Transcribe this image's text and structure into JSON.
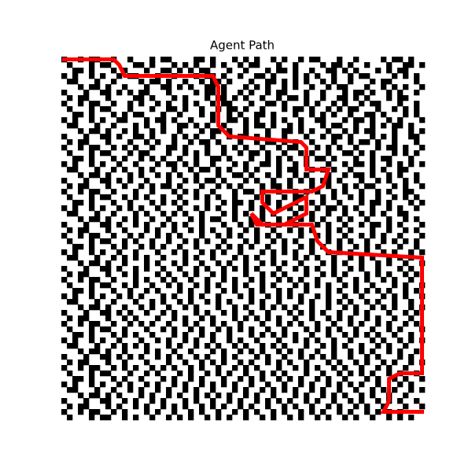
{
  "chart_data": {
    "type": "grid-path",
    "title": "Agent Path",
    "wall_color": "#000000",
    "path_color": "#ff0000",
    "grid": [
      "#..#.##..#..#...#.##....##.#...#.#.#..#.#..#.##...#..#....#.##.#..",
      ".#...#.##....##.#...#.#.#..#.#..#.##...#..#....#.##.#..#...#..##.#",
      "..##.#...#.#...#..##.#.#.##...#..#...#.##.#..#..##.#.#...#.#.##...",
      "#.#..#.#..#.##...#..#...#.##.#..#..##.#...#.#.#..#..#.##....#.#.#.",
      ".##...#..#....#.##.#..#..#.##.#...#..##.#.#.#..#.#..#...#.##....#.",
      "...#.##.#..#...#..##.#.#..##.#...#.#.#..#.#..#..#.##...#..#.#.#..#",
      "#...#..##.#.#.##...#....#.##.#..#.#..#.##...#..#...#.##.#..#.#..#.",
      ".#.##...#....##.#...#.#...#.##.#.#..#..#.##.#..#..##.#.#...#.##...",
      "#..#.##..#..#.#..#.#..#.#..#.##...#..##.#...#.#..#.#..#.##...#..#.",
      ".#...#.##...#...#..##.#..#..#.##.#..#...#.##.#..#.#.##...#..#.#.#.",
      "..##.#...#.#.##...#..#...#.#..#.#..##.#...#..#.#.#..#..##.#...#.#.",
      "#.#..#.#..##...#.##.#..#...#..##.#.#..#.#..#..##...#.##.#..#.#...#",
      ".##...#..#...#.#..#..##.#.#..#...#.##.#..#.#...#.##..#..#.#.##.#..",
      "...#.##.#..#.#..#.#..#...#.##.#..#...#..##.#.#..#..#.#.##...#..#.#",
      "#...#..##.#..##.#...#.#.#..#..#.##.#.#..#...#..#.##.#...#.#.#..##.",
      ".#.##...#...#..#.#..#..#.##.#...#..#.##.#.#..#...#..#.##.#..#...#.",
      "#..#.##..#.#.#..#..##.#...#..#.#.#..#..#.##...#.#.#..#...#.##.#..#",
      ".#...#.##...#.##...#..#.#.#..#..#.##.#..#..#.#..#..##.#.#...#.#.#.",
      "..##.#...#.#..#.#.#..#..#..##.#...#..#.#.#..#.##.#...#..#.##...#..",
      "#.#..#.#..#..#...#.##.#.#..#...#.#..##.#..#.#...#..#.##.#..#.#.#.#",
      ".##...#..#.#..#.#...#..#.##.#.#..#.#...#.##..#.#.#..#...#.#..##...",
      "...#.##.#...#.#..#.#.#..#...#..##.#..#.#..#.#...#..#.##.#..#.#..#.",
      "#...#..##.#.#..#...#..#.#.##.#...#.#..#..#.#.#.##.#...#..#.#..#.#.",
      ".#.##...#..#..#.#.##.#...#..#.#.#...#.##.#...#..#..#.#.##...#.#..#",
      "#..#.##..#...#..#...#.#.#..#...#.##.#..#..#.#.#..#.#..#..#.#..##..",
      ".#...#.##..#.#.#..#..#..#.#.#..#...#.#..#.##...#.#..#.#..#..#.#.#.",
      "..##.#...#..#...#.#.#.#...#..#.##.#..#.#..#..#.#..#...#.##.#...#.#",
      "#.#..#.#..#.#.#..#...#..#.#.#..#..#.#..#.#.#..#.##.#.#..#..#.#..#.",
      ".##...#..#...#.#..#.#.#..#...#.#.#..#.#...#..#..#..#..#.#.#..##...",
      "...#.##.#..#.#..#..#...#.#.##..#..#.#..#.#.#.#.#..#.#..#...#..#.#.",
      "#...#..##.#..#.#..#.#.#..#...#..#.#..#.#..#...#.#..#..#.##.#.#...#",
      ".#.##...#..#...#.#..#..#.#.#..#..#.#..#..#.#.#..#.#.#...#..#..#.#.",
      "#..#.##..#..#.#..#.#.#...#..#.#.#..#.#.#...#..#.#..#..#.#.#..#...#",
      ".#...#.##..#.#..#..#..#.#.#..#...#.#..#.#.#..#..#.#.#..#..#.#.#.#.",
      "..##.#...#.#..#.#.#..#..#...#.#.#.#..#..#..#.#.#..#..#.#.#...#..#.",
      "#.#..#.#..#..#...#..#.#..#.#.#..#...#.#.#.#..#..#.#.#..#..#.#..#.#",
      ".##...#..#.#.#.#..#...#.#..#...#.#.#..#...#.#.#..#..#.#.#..#.#.#..",
      "...#.##.#..#...#.#..#.#..#..#.#..#..#.#.#..#...#.#.#..#..#.#..#..#",
      "#...#..##.#..#.#..#..#..#.#..#.#.#.#...#..#.#.#..#..#.#..#...#.#..",
      ".#.##...#..#.#...#.#..#.#..#.#...#..#.#.#...#..#.#.#...#.#.#..#.#.",
      "#..#.##..#...#.#..#.#..#..#..#.#..#.#..#.#.#..#...#..#.#..#.#..#..",
      ".#...#.##..#.#..#..#.#..#.#.#..#.#..#.#...#.#.#.#..#.#..#...#.#..#",
      "..##.#...#..#..#.#...#.#..#..#.#..#.#..#.#..#...#.#..#.#.#.#..#.#.",
      "#.#..#.#..#.#.#...#.#..#.#..#...#.#..#.#.#.#..#.#..#..#...#.#.#..#",
      ".##...#..#...#..#.#..#.#..#.#.#...#.#..#...#.#..#.#.#..#.#..#..#..",
      "...#.##.#..#..#.#..#..#.#...#..#.#..#.#.#.#..#..#..#.#..#.#.#..#.#",
      "#...#..##.#.#..#..#.#...#.#..#.#..#..#...#.#.#.#..#..#.#...#..#.#.",
      ".#.##...#..#.#...#..#.#..#.#...#.#.#.#.#..#..#..#.#.#..#.#..#..#..",
      "#..#.##..#..#.#.#..#..#.#..#.#..#...#..#.#.#..#..#..#.#..#.#..#.#.",
      ".#...#.##..#...#..#.#..#.#..#.#.#.#..#..#...#.#.#.#..#..#..#.#...#",
      "..##.#...#.#.#..#...#.#..#.#..#...#.#.#.#.#..#..#..#.#.#.#..#..#..",
      "#.#..#.#..#...#..#.#..#.#..#..#.#..#...#..#.#.#..#..#...#.#..#.#.#",
      ".##...#..#.#.#.#...#.#..#.#.#..#.#..#.#.#...#..#.#.#..#..#.#..#...",
      "...#.##.#..#...#.#..#..#...#.#..#.#.#..#.#.#..#..#..#.#.#..#.#..#.",
      "#...#..##.#.#.#..#.#.#..#.#..#.#...#.#..#..#.#.#.#..#..#.#...#.#..",
      ".#.##...#..#...#...#..#..#.#.#..#.#..#.#.#..#...#.#..#.#..#.#..#.#",
      "#..#.##..#.#.#..#.#.#..#.#..#..#.#.#...#..#.#.#..#.#..#..#.#..#...",
      ".#...#.##...#..#.#...#.#..#.#.#..#..#.#.#...#..#..#.#.#.#..#.#..#.",
      "..##.#...#.#..#...#.#..#.#...#..#.#.#..#.#.#..#.#..#...#.#..#.#..#",
      "#.#..#.#..#.#..#.#..#.#..#.#.#.#..#..#..#..#.#..#.#.#.#..#...#.#..",
      ".##...#..#..#.#..#.#..#.#..#...#.#..#.#.#.#..#.#..#..#..#.#.#..#.#",
      "...#.##.#.#...#.#..#.#..#.#.#.#..#.#..#...#.#..#.#.#..#.#..#..#...",
      "#...#..##..#.#..#.#...#.#..#..#.#..#.#.#.#..#.#..#..#.#..#.#.#..#.",
      ".#.##...#.#..#.#..#.#.#..#.#.#..#.#..#..#.#..#..#.#..#.#..#...#..#",
      "#..#.##..#.#...#.#..#..#.#..#..#.#.#..#.#..#.#.#..#.#..#.#.#.#....",
      ".#...#.##..#.#..#..#.#.#..#.#.#..#..#.#..#.#..#.#..#.#..#..#.#.#.."
    ],
    "path": {
      "x": [
        0,
        9,
        10,
        11,
        27,
        28,
        28,
        30,
        43,
        44,
        44,
        48,
        47,
        45,
        36,
        36,
        38,
        44,
        44,
        40,
        36,
        34,
        35,
        45,
        46,
        48,
        65,
        65,
        61,
        59,
        59,
        58,
        65
      ],
      "y": [
        0,
        0,
        1,
        3,
        3,
        5,
        12,
        14,
        15,
        16,
        20,
        20,
        23,
        24,
        24,
        26,
        28,
        25,
        28,
        30,
        30,
        28,
        30,
        30,
        33,
        35,
        36,
        57,
        57,
        58,
        62,
        64,
        64
      ]
    }
  }
}
